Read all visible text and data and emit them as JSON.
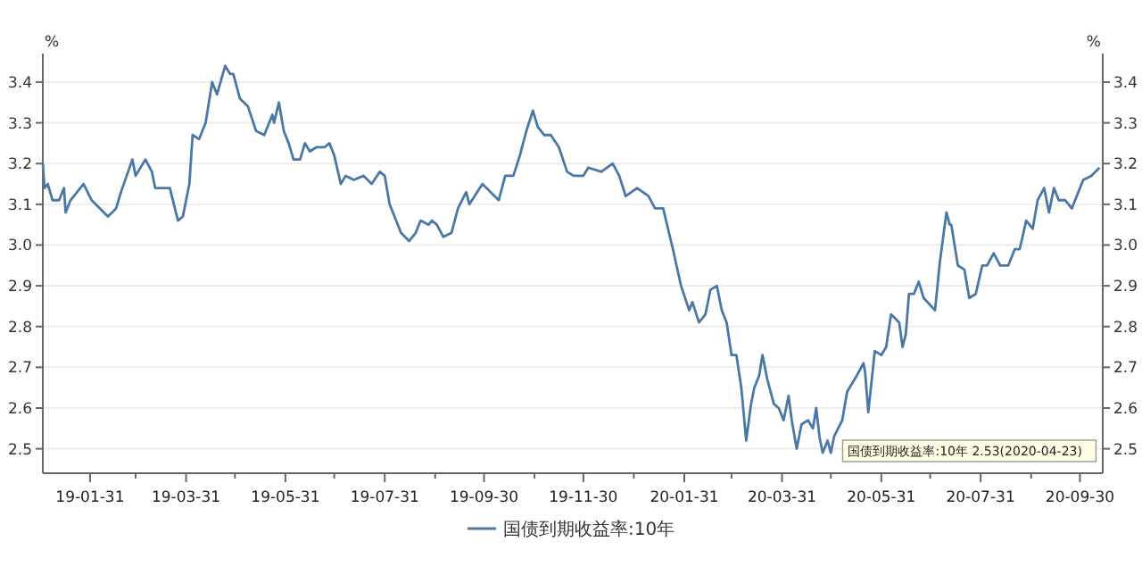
{
  "chart_data": {
    "type": "line",
    "ylabel": "%",
    "y2label": "%",
    "x": [
      "2019-01-02",
      "2019-01-03",
      "2019-01-05",
      "2019-01-08",
      "2019-01-12",
      "2019-01-15",
      "2019-01-16",
      "2019-01-19",
      "2019-01-27",
      "2019-02-01",
      "2019-02-11",
      "2019-02-16",
      "2019-02-19",
      "2019-02-26",
      "2019-02-28",
      "2019-03-06",
      "2019-03-10",
      "2019-03-12",
      "2019-03-21",
      "2019-03-26",
      "2019-03-29",
      "2019-04-02",
      "2019-04-04",
      "2019-04-08",
      "2019-04-12",
      "2019-04-16",
      "2019-04-19",
      "2019-04-24",
      "2019-04-27",
      "2019-04-29",
      "2019-05-03",
      "2019-05-08",
      "2019-05-13",
      "2019-05-18",
      "2019-05-23",
      "2019-05-24",
      "2019-05-27",
      "2019-05-30",
      "2019-06-02",
      "2019-06-05",
      "2019-06-09",
      "2019-06-12",
      "2019-06-15",
      "2019-06-19",
      "2019-06-24",
      "2019-06-27",
      "2019-06-30",
      "2019-07-04",
      "2019-07-07",
      "2019-07-12",
      "2019-07-18",
      "2019-07-23",
      "2019-07-28",
      "2019-07-31",
      "2019-08-03",
      "2019-08-07",
      "2019-08-10",
      "2019-08-15",
      "2019-08-19",
      "2019-08-22",
      "2019-08-27",
      "2019-08-29",
      "2019-09-01",
      "2019-09-05",
      "2019-09-10",
      "2019-09-14",
      "2019-09-19",
      "2019-09-21",
      "2019-09-29",
      "2019-10-09",
      "2019-10-13",
      "2019-10-18",
      "2019-10-22",
      "2019-10-26",
      "2019-10-30",
      "2019-11-02",
      "2019-11-06",
      "2019-11-10",
      "2019-11-15",
      "2019-11-20",
      "2019-11-24",
      "2019-11-30",
      "2019-12-03",
      "2019-12-11",
      "2019-12-18",
      "2019-12-22",
      "2019-12-26",
      "2020-01-02",
      "2020-01-09",
      "2020-01-13",
      "2020-01-18",
      "2020-01-24",
      "2020-01-29",
      "2020-02-03",
      "2020-02-05",
      "2020-02-09",
      "2020-02-13",
      "2020-02-16",
      "2020-02-20",
      "2020-02-23",
      "2020-02-26",
      "2020-02-29",
      "2020-03-03",
      "2020-03-06",
      "2020-03-09",
      "2020-03-12",
      "2020-03-14",
      "2020-03-17",
      "2020-03-19",
      "2020-03-22",
      "2020-03-26",
      "2020-03-29",
      "2020-04-01",
      "2020-04-04",
      "2020-04-06",
      "2020-04-09",
      "2020-04-12",
      "2020-04-16",
      "2020-04-19",
      "2020-04-21",
      "2020-04-23",
      "2020-04-25",
      "2020-04-28",
      "2020-04-30",
      "2020-05-02",
      "2020-05-07",
      "2020-05-10",
      "2020-05-16",
      "2020-05-20",
      "2020-05-21",
      "2020-05-23",
      "2020-05-27",
      "2020-05-31",
      "2020-06-03",
      "2020-06-06",
      "2020-06-11",
      "2020-06-13",
      "2020-06-15",
      "2020-06-17",
      "2020-06-20",
      "2020-06-23",
      "2020-06-26",
      "2020-07-03",
      "2020-07-06",
      "2020-07-10",
      "2020-07-12",
      "2020-07-13",
      "2020-07-17",
      "2020-07-21",
      "2020-07-24",
      "2020-07-28",
      "2020-08-01",
      "2020-08-04",
      "2020-08-08",
      "2020-08-12",
      "2020-08-17",
      "2020-08-21",
      "2020-08-24",
      "2020-08-28",
      "2020-09-01",
      "2020-09-04",
      "2020-09-08",
      "2020-09-11",
      "2020-09-14",
      "2020-09-17",
      "2020-09-21",
      "2020-09-25",
      "2020-09-28",
      "2020-10-02",
      "2020-10-07",
      "2020-10-12"
    ],
    "series": [
      {
        "name": "国债到期收益率:10年",
        "color": "#4a78a6",
        "values": [
          3.2,
          3.14,
          3.15,
          3.11,
          3.11,
          3.14,
          3.08,
          3.11,
          3.15,
          3.11,
          3.07,
          3.09,
          3.13,
          3.21,
          3.17,
          3.21,
          3.18,
          3.14,
          3.14,
          3.06,
          3.07,
          3.15,
          3.27,
          3.26,
          3.3,
          3.4,
          3.37,
          3.44,
          3.42,
          3.42,
          3.36,
          3.34,
          3.28,
          3.27,
          3.32,
          3.3,
          3.35,
          3.28,
          3.25,
          3.21,
          3.21,
          3.25,
          3.23,
          3.24,
          3.24,
          3.25,
          3.22,
          3.15,
          3.17,
          3.16,
          3.17,
          3.15,
          3.18,
          3.17,
          3.1,
          3.06,
          3.03,
          3.01,
          3.03,
          3.06,
          3.05,
          3.06,
          3.05,
          3.02,
          3.03,
          3.09,
          3.13,
          3.1,
          3.15,
          3.11,
          3.17,
          3.17,
          3.22,
          3.28,
          3.33,
          3.29,
          3.27,
          3.27,
          3.24,
          3.18,
          3.17,
          3.17,
          3.19,
          3.18,
          3.2,
          3.17,
          3.12,
          3.14,
          3.12,
          3.09,
          3.09,
          2.99,
          2.9,
          2.84,
          2.86,
          2.81,
          2.83,
          2.89,
          2.9,
          2.84,
          2.81,
          2.73,
          2.73,
          2.65,
          2.52,
          2.61,
          2.65,
          2.68,
          2.73,
          2.67,
          2.61,
          2.6,
          2.57,
          2.63,
          2.57,
          2.5,
          2.56,
          2.57,
          2.55,
          2.6,
          2.53,
          2.49,
          2.52,
          2.49,
          2.53,
          2.57,
          2.64,
          2.68,
          2.71,
          2.69,
          2.59,
          2.74,
          2.73,
          2.75,
          2.83,
          2.81,
          2.75,
          2.78,
          2.88,
          2.88,
          2.91,
          2.87,
          2.84,
          2.96,
          3.08,
          3.05,
          3.05,
          2.95,
          2.94,
          2.87,
          2.88,
          2.95,
          2.95,
          2.98,
          2.95,
          2.95,
          2.99,
          2.99,
          3.06,
          3.04,
          3.11,
          3.14,
          3.08,
          3.14,
          3.11,
          3.11,
          3.09,
          3.12,
          3.16,
          3.17,
          3.19
        ]
      }
    ],
    "xlim": [
      "2019-01-02",
      "2020-10-14"
    ],
    "xticks": [
      {
        "value": "2019-01-31",
        "label": "19-01-31"
      },
      {
        "value": "2019-02-28",
        "label": null
      },
      {
        "value": "2019-03-31",
        "label": "19-03-31"
      },
      {
        "value": "2019-04-30",
        "label": null
      },
      {
        "value": "2019-05-31",
        "label": "19-05-31"
      },
      {
        "value": "2019-06-30",
        "label": null
      },
      {
        "value": "2019-07-31",
        "label": "19-07-31"
      },
      {
        "value": "2019-08-31",
        "label": null
      },
      {
        "value": "2019-09-30",
        "label": "19-09-30"
      },
      {
        "value": "2019-10-31",
        "label": null
      },
      {
        "value": "2019-11-30",
        "label": "19-11-30"
      },
      {
        "value": "2019-12-31",
        "label": null
      },
      {
        "value": "2020-01-31",
        "label": "20-01-31"
      },
      {
        "value": "2020-02-29",
        "label": null
      },
      {
        "value": "2020-03-31",
        "label": "20-03-31"
      },
      {
        "value": "2020-04-30",
        "label": null
      },
      {
        "value": "2020-05-31",
        "label": "20-05-31"
      },
      {
        "value": "2020-06-30",
        "label": null
      },
      {
        "value": "2020-07-31",
        "label": "20-07-31"
      },
      {
        "value": "2020-08-31",
        "label": null
      },
      {
        "value": "2020-09-30",
        "label": "20-09-30"
      }
    ],
    "ylim": [
      2.44,
      3.47
    ],
    "yticks": [
      {
        "value": 2.5,
        "label": "2.5"
      },
      {
        "value": 2.6,
        "label": "2.6"
      },
      {
        "value": 2.7,
        "label": "2.7"
      },
      {
        "value": 2.8,
        "label": "2.8"
      },
      {
        "value": 2.9,
        "label": "2.9"
      },
      {
        "value": 3.0,
        "label": "3.0"
      },
      {
        "value": 3.1,
        "label": "3.1"
      },
      {
        "value": 3.2,
        "label": "3.2"
      },
      {
        "value": 3.3,
        "label": "3.3"
      },
      {
        "value": 3.4,
        "label": "3.4"
      }
    ],
    "y2lim": [
      2.44,
      3.47
    ],
    "y2ticks": [
      {
        "value": 2.5,
        "label": "2.5"
      },
      {
        "value": 2.6,
        "label": "2.6"
      },
      {
        "value": 2.7,
        "label": "2.7"
      },
      {
        "value": 2.8,
        "label": "2.8"
      },
      {
        "value": 2.9,
        "label": "2.9"
      },
      {
        "value": 3.0,
        "label": "3.0"
      },
      {
        "value": 3.1,
        "label": "3.1"
      },
      {
        "value": 3.2,
        "label": "3.2"
      },
      {
        "value": 3.3,
        "label": "3.3"
      },
      {
        "value": 3.4,
        "label": "3.4"
      }
    ],
    "grid": "y",
    "legend": "bottom",
    "annotations": [
      {
        "text": "国债到期收益率:10年 2.53(2020-04-23)",
        "x": "2020-04-23",
        "y": 2.53
      }
    ]
  }
}
